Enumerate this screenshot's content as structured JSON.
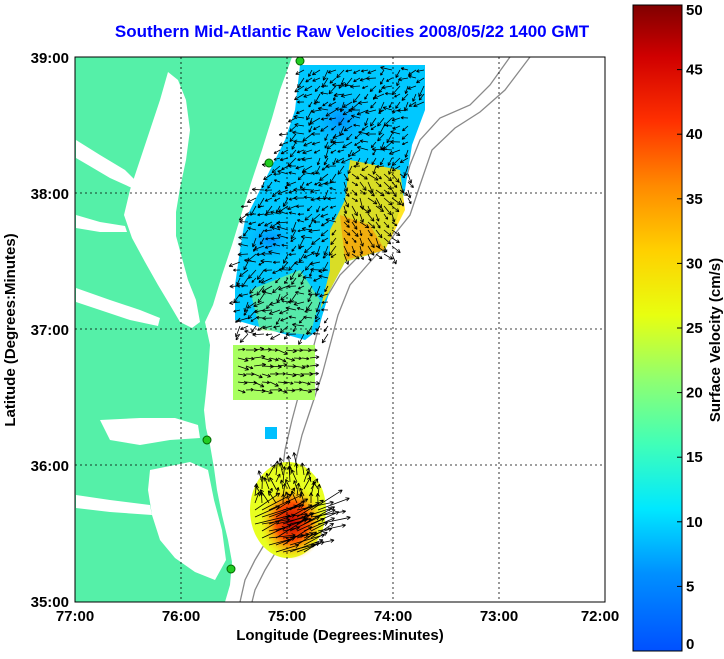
{
  "title": "Southern Mid-Atlantic Raw Velocities 2008/05/22 1400 GMT",
  "map": {
    "xlabel": "Longitude (Degrees:Minutes)",
    "ylabel": "Latitude (Degrees:Minutes)",
    "x_ticks": [
      "77:00",
      "76:00",
      "75:00",
      "74:00",
      "73:00",
      "72:00"
    ],
    "y_ticks": [
      "39:00",
      "38:00",
      "37:00",
      "36:00",
      "35:00"
    ],
    "x_range": [
      -77,
      -72
    ],
    "y_range": [
      35,
      39
    ],
    "colors": {
      "land": "#55f0a8",
      "isobath": "#8a8a8a",
      "grid": "#000000",
      "station": "#22cc22"
    }
  },
  "colorbar": {
    "label": "Surface Velocity (cm/s)",
    "min": 0,
    "max": 50,
    "ticks": [
      "0",
      "5",
      "10",
      "15",
      "20",
      "25",
      "30",
      "35",
      "40",
      "45",
      "50"
    ]
  }
}
